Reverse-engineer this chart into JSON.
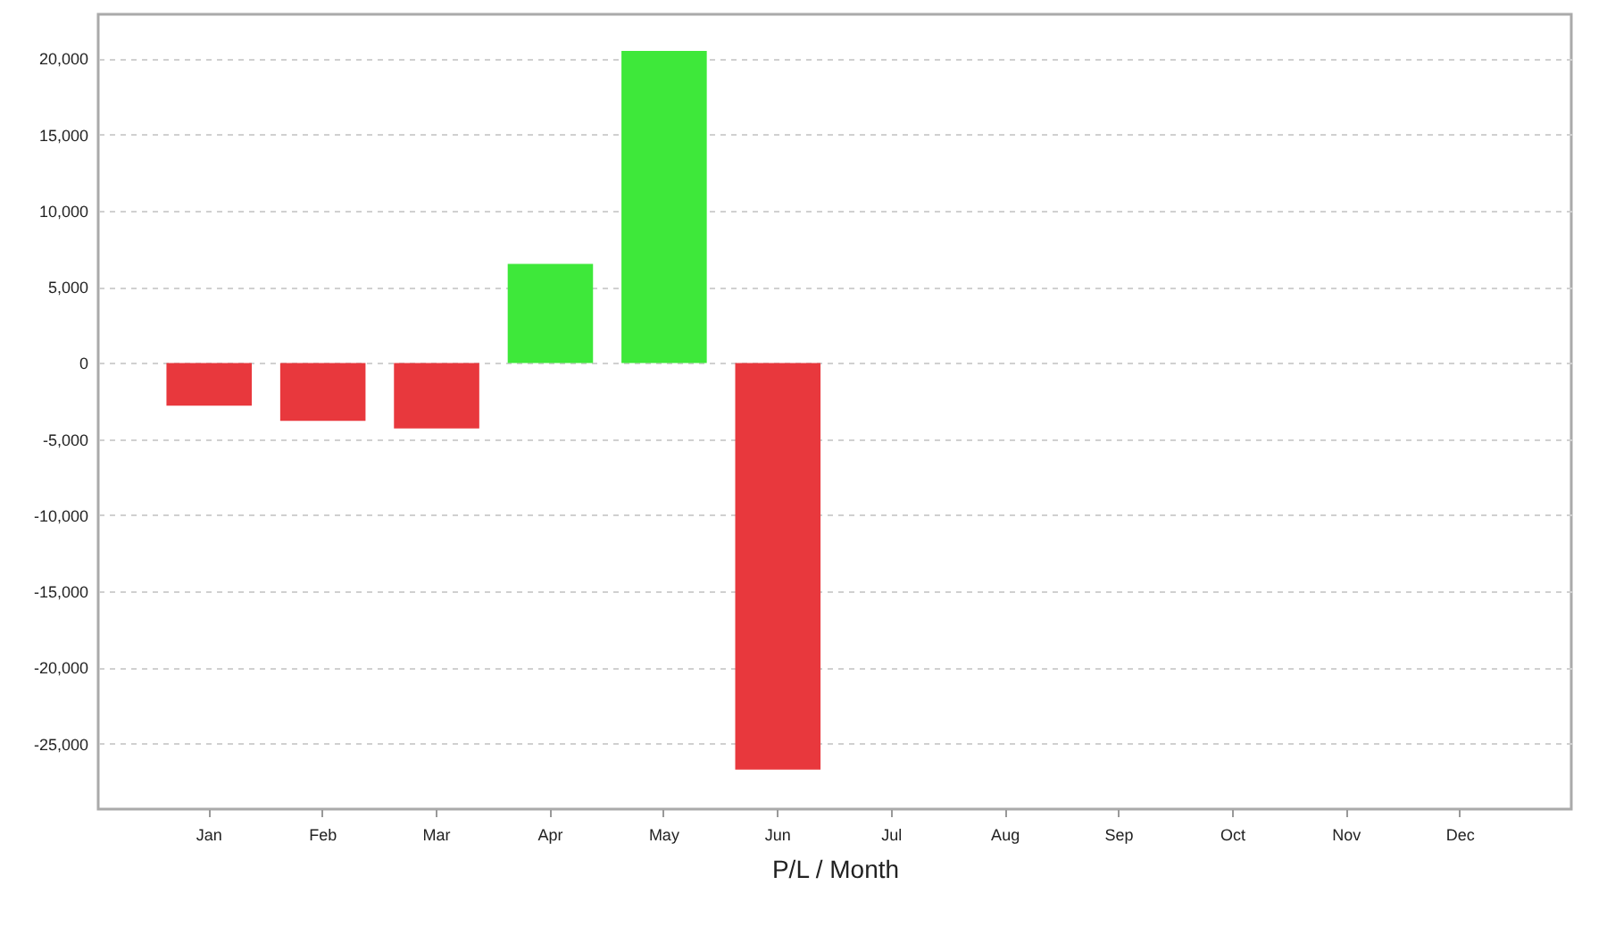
{
  "chart_data": {
    "type": "bar",
    "xlabel": "P/L / Month",
    "categories": [
      "Jan",
      "Feb",
      "Mar",
      "Apr",
      "May",
      "Jun",
      "Jul",
      "Aug",
      "Sep",
      "Oct",
      "Nov",
      "Dec"
    ],
    "values": [
      -2800,
      -3800,
      -4300,
      6500,
      20500,
      -26700,
      null,
      null,
      null,
      null,
      null,
      null
    ],
    "colors": [
      "#e8383d",
      "#e8383d",
      "#e8383d",
      "#3ee83a",
      "#3ee83a",
      "#e8383d",
      "#e8383d",
      "#e8383d",
      "#e8383d",
      "#e8383d",
      "#e8383d",
      "#e8383d"
    ],
    "ylim": [
      -29300,
      22900
    ],
    "yticks": [
      {
        "value": -25000,
        "label": "-25,000"
      },
      {
        "value": -20000,
        "label": "-20,000"
      },
      {
        "value": -15000,
        "label": "-15,000"
      },
      {
        "value": -10000,
        "label": "-10,000"
      },
      {
        "value": -5000,
        "label": "-5,000"
      },
      0,
      {
        "value": 5000,
        "label": "5,000"
      },
      {
        "value": 10000,
        "label": "10,000"
      },
      {
        "value": 15000,
        "label": "15,000"
      },
      {
        "value": 20000,
        "label": "20,000"
      }
    ],
    "grid": "y"
  }
}
